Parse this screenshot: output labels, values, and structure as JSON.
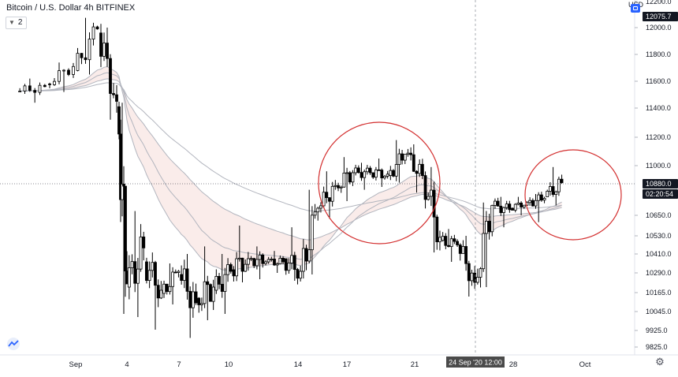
{
  "header": {
    "symbol_line": "Bitcoin / U.S. Dollar  4h  BITFINEX",
    "indicator_count": "2",
    "currency": "USD"
  },
  "icons": {
    "flag": "flag-icon",
    "chevron": "chevron-down-icon",
    "logo": "tradingview-logo-icon",
    "settings": "gear-icon"
  },
  "colors": {
    "up_candle": "#ffffff",
    "down_candle": "#000000",
    "candle_border": "#000000",
    "ema_fast": "#b2b5be",
    "ema_slow": "#b2b5be",
    "cloud_bear": "#f3d5d0",
    "cloud_bull": "#e8e8ea",
    "circle": "#d32f2f",
    "grid": "#f0f3fa",
    "axis_text": "#131722",
    "label_dark": "#131722",
    "crosshair_label": "#4a4a4a"
  },
  "chart_data": {
    "type": "candlestick",
    "price_axis": {
      "ylim": [
        9790,
        12250
      ],
      "ticks": [
        12200.0,
        12000.0,
        11800.0,
        11600.0,
        11400.0,
        11200.0,
        11000.0,
        10650.0,
        10530.0,
        10410.0,
        10290.0,
        10165.0,
        10045.0,
        9925.0,
        9825.0
      ],
      "tick_labels": [
        "12200.0",
        "12000.0",
        "11800.0",
        "11600.0",
        "11400.0",
        "11200.0",
        "11000.0",
        "10650.0",
        "10530.0",
        "10410.0",
        "10290.0",
        "10165.0",
        "10045.0",
        "9925.0",
        "9825.0"
      ]
    },
    "time_axis": {
      "labels": [
        "Sep",
        "4",
        "7",
        "10",
        "14",
        "17",
        "21",
        "28",
        "Oct"
      ],
      "crosshair_label": "24 Sep '20   12:00"
    },
    "price_labels": [
      {
        "text": "12075.7",
        "value": 12075.7,
        "style": "dark"
      },
      {
        "text": "10880.0",
        "value": 10880.0,
        "style": "dark"
      },
      {
        "text": "02:20:54",
        "value": 10835.0,
        "style": "dark"
      }
    ],
    "candles_by_day": [
      {
        "date": "Aug 30",
        "o": 11520,
        "h": 11620,
        "l": 11440,
        "c": 11560
      },
      {
        "date": "Aug 31",
        "o": 11580,
        "h": 11740,
        "l": 11520,
        "c": 11710
      },
      {
        "date": "Sep 1",
        "o": 11680,
        "h": 12075,
        "l": 11650,
        "c": 11990
      },
      {
        "date": "Sep 2",
        "o": 11960,
        "h": 12000,
        "l": 11320,
        "c": 11450
      },
      {
        "date": "Sep 3",
        "o": 11410,
        "h": 11440,
        "l": 10030,
        "c": 10220
      },
      {
        "date": "Sep 4",
        "o": 10200,
        "h": 10680,
        "l": 10010,
        "c": 10450
      },
      {
        "date": "Sep 5",
        "o": 10360,
        "h": 10420,
        "l": 9930,
        "c": 10180
      },
      {
        "date": "Sep 6",
        "o": 10160,
        "h": 10350,
        "l": 10090,
        "c": 10300
      },
      {
        "date": "Sep 7",
        "o": 10280,
        "h": 10410,
        "l": 9880,
        "c": 10100
      },
      {
        "date": "Sep 8",
        "o": 10130,
        "h": 10460,
        "l": 9990,
        "c": 10200
      },
      {
        "date": "Sep 9",
        "o": 10180,
        "h": 10410,
        "l": 10030,
        "c": 10300
      },
      {
        "date": "Sep 10",
        "o": 10310,
        "h": 10590,
        "l": 10230,
        "c": 10380
      },
      {
        "date": "Sep 11",
        "o": 10380,
        "h": 10460,
        "l": 10250,
        "c": 10360
      },
      {
        "date": "Sep 12",
        "o": 10360,
        "h": 10430,
        "l": 10290,
        "c": 10360
      },
      {
        "date": "Sep 13",
        "o": 10380,
        "h": 10580,
        "l": 10240,
        "c": 10300
      },
      {
        "date": "Sep 14",
        "o": 10300,
        "h": 10830,
        "l": 10280,
        "c": 10700
      },
      {
        "date": "Sep 15",
        "o": 10700,
        "h": 10960,
        "l": 10630,
        "c": 10860
      },
      {
        "date": "Sep 16",
        "o": 10860,
        "h": 11060,
        "l": 10750,
        "c": 10950
      },
      {
        "date": "Sep 17",
        "o": 10950,
        "h": 11020,
        "l": 10830,
        "c": 10950
      },
      {
        "date": "Sep 18",
        "o": 10950,
        "h": 11050,
        "l": 10850,
        "c": 10940
      },
      {
        "date": "Sep 19",
        "o": 10930,
        "h": 11180,
        "l": 10880,
        "c": 11080
      },
      {
        "date": "Sep 20",
        "o": 11080,
        "h": 11150,
        "l": 10810,
        "c": 10930
      },
      {
        "date": "Sep 21",
        "o": 10930,
        "h": 10990,
        "l": 10420,
        "c": 10520
      },
      {
        "date": "Sep 22",
        "o": 10500,
        "h": 10570,
        "l": 10360,
        "c": 10470
      },
      {
        "date": "Sep 23",
        "o": 10470,
        "h": 10530,
        "l": 10140,
        "c": 10230
      },
      {
        "date": "Sep 24",
        "o": 10230,
        "h": 10740,
        "l": 10200,
        "c": 10720
      },
      {
        "date": "Sep 25",
        "o": 10720,
        "h": 10780,
        "l": 10580,
        "c": 10690
      },
      {
        "date": "Sep 26",
        "o": 10700,
        "h": 10780,
        "l": 10650,
        "c": 10740
      },
      {
        "date": "Sep 27",
        "o": 10740,
        "h": 10800,
        "l": 10610,
        "c": 10770
      },
      {
        "date": "Sep 28",
        "o": 10780,
        "h": 10990,
        "l": 10720,
        "c": 10880
      }
    ],
    "annotations": [
      {
        "type": "ellipse",
        "label": "",
        "center_date": "Sep 19",
        "center_price": 10990
      },
      {
        "type": "ellipse",
        "label": "",
        "center_date": "Sep 30",
        "center_price": 10800
      }
    ],
    "grid": false,
    "legend": "top-left"
  }
}
